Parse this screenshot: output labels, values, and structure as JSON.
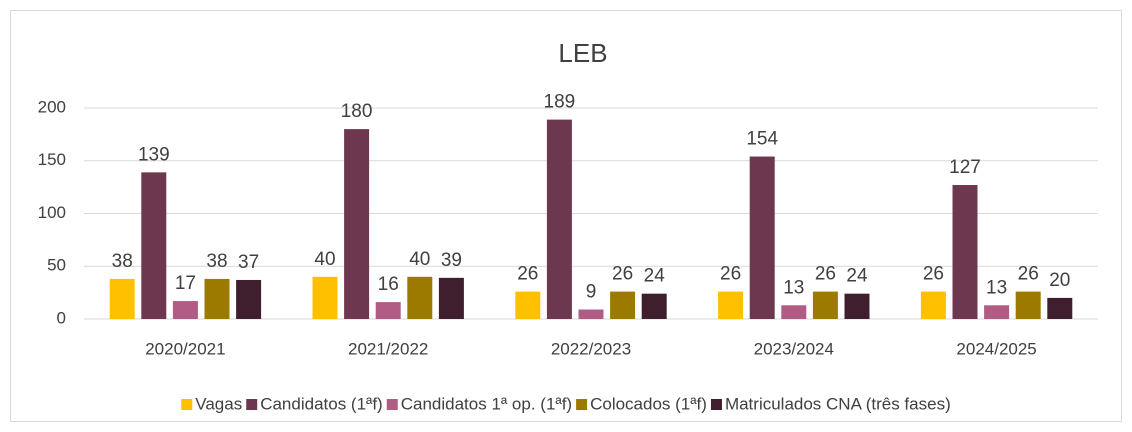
{
  "chart_data": {
    "type": "bar",
    "title": "LEB",
    "categories": [
      "2020/2021",
      "2021/2022",
      "2022/2023",
      "2023/2024",
      "2024/2025"
    ],
    "series": [
      {
        "name": "Vagas",
        "color": "#ffc000",
        "values": [
          38,
          40,
          26,
          26,
          26
        ]
      },
      {
        "name": "Candidatos (1ªf)",
        "color": "#6e3750",
        "values": [
          139,
          180,
          189,
          154,
          127
        ]
      },
      {
        "name": "Candidatos 1ª op. (1ªf)",
        "color": "#b05c85",
        "values": [
          17,
          16,
          9,
          13,
          13
        ]
      },
      {
        "name": "Colocados (1ªf)",
        "color": "#9c7a00",
        "values": [
          38,
          40,
          26,
          26,
          26
        ]
      },
      {
        "name": "Matriculados CNA (três fases)",
        "color": "#3f1e2e",
        "values": [
          37,
          39,
          24,
          24,
          20
        ]
      }
    ],
    "ylim": [
      0,
      200
    ],
    "yticks": [
      0,
      50,
      100,
      150,
      200
    ],
    "grid": true,
    "legend": "bottom"
  }
}
